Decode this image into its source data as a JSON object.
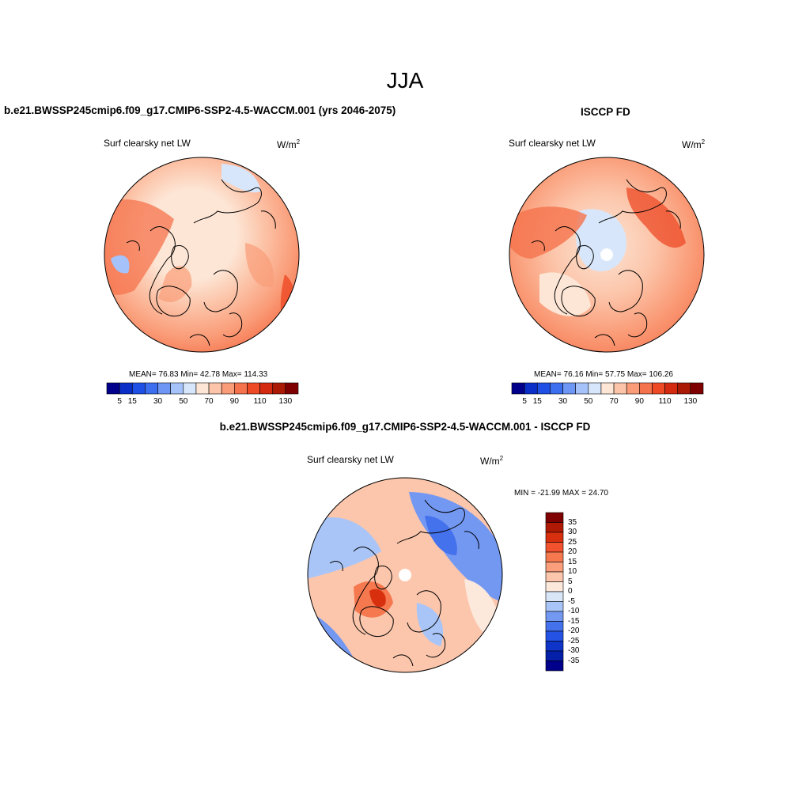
{
  "title": "JJA",
  "panels": [
    {
      "id": "model",
      "title": "b.e21.BWSSP245cmip6.f09_g17.CMIP6-SSP2-4.5-WACCM.001 (yrs 2046-2075)",
      "variable": "Surf clearsky net LW",
      "units_base": "W/m",
      "units_exp": "2",
      "stats": "MEAN=  76.83  Min=  42.78  Max= 114.33",
      "colorbar_ticks": [
        "5",
        "15",
        "30",
        "50",
        "70",
        "90",
        "110",
        "130"
      ]
    },
    {
      "id": "obs",
      "title": "ISCCP FD",
      "variable": "Surf clearsky net LW",
      "units_base": "W/m",
      "units_exp": "2",
      "stats": "MEAN=  76.16  Min=  57.75  Max= 106.26",
      "colorbar_ticks": [
        "5",
        "15",
        "30",
        "50",
        "70",
        "90",
        "110",
        "130"
      ]
    },
    {
      "id": "diff",
      "title": "b.e21.BWSSP245cmip6.f09_g17.CMIP6-SSP2-4.5-WACCM.001 - ISCCP FD",
      "variable": "Surf clearsky net LW",
      "units_base": "W/m",
      "units_exp": "2",
      "stats": "MIN = -21.99 MAX =  24.70",
      "colorbar_ticks": [
        "35",
        "30",
        "25",
        "20",
        "15",
        "10",
        "5",
        "0",
        "-5",
        "-10",
        "-15",
        "-20",
        "-25",
        "-30",
        "-35"
      ]
    }
  ],
  "colors": {
    "abs_scale": [
      "#00008b",
      "#0a2fc8",
      "#1e50e6",
      "#3c6ef0",
      "#6e96f5",
      "#a5c3fa",
      "#d7e6fa",
      "#fde6d6",
      "#fcc5aa",
      "#fa9c78",
      "#f5734c",
      "#ee4a26",
      "#d42b10",
      "#aa1a05",
      "#7f0000"
    ],
    "diff_scale": [
      "#7f0000",
      "#b01a05",
      "#d8300f",
      "#f2522d",
      "#f5784f",
      "#fa9e7c",
      "#fcc6ac",
      "#fde8dc",
      "#d9e6f8",
      "#a9c5f7",
      "#7398f2",
      "#4471ec",
      "#2452e4",
      "#0f34c8",
      "#041fa8",
      "#00008b"
    ],
    "land_outline": "#000000"
  }
}
